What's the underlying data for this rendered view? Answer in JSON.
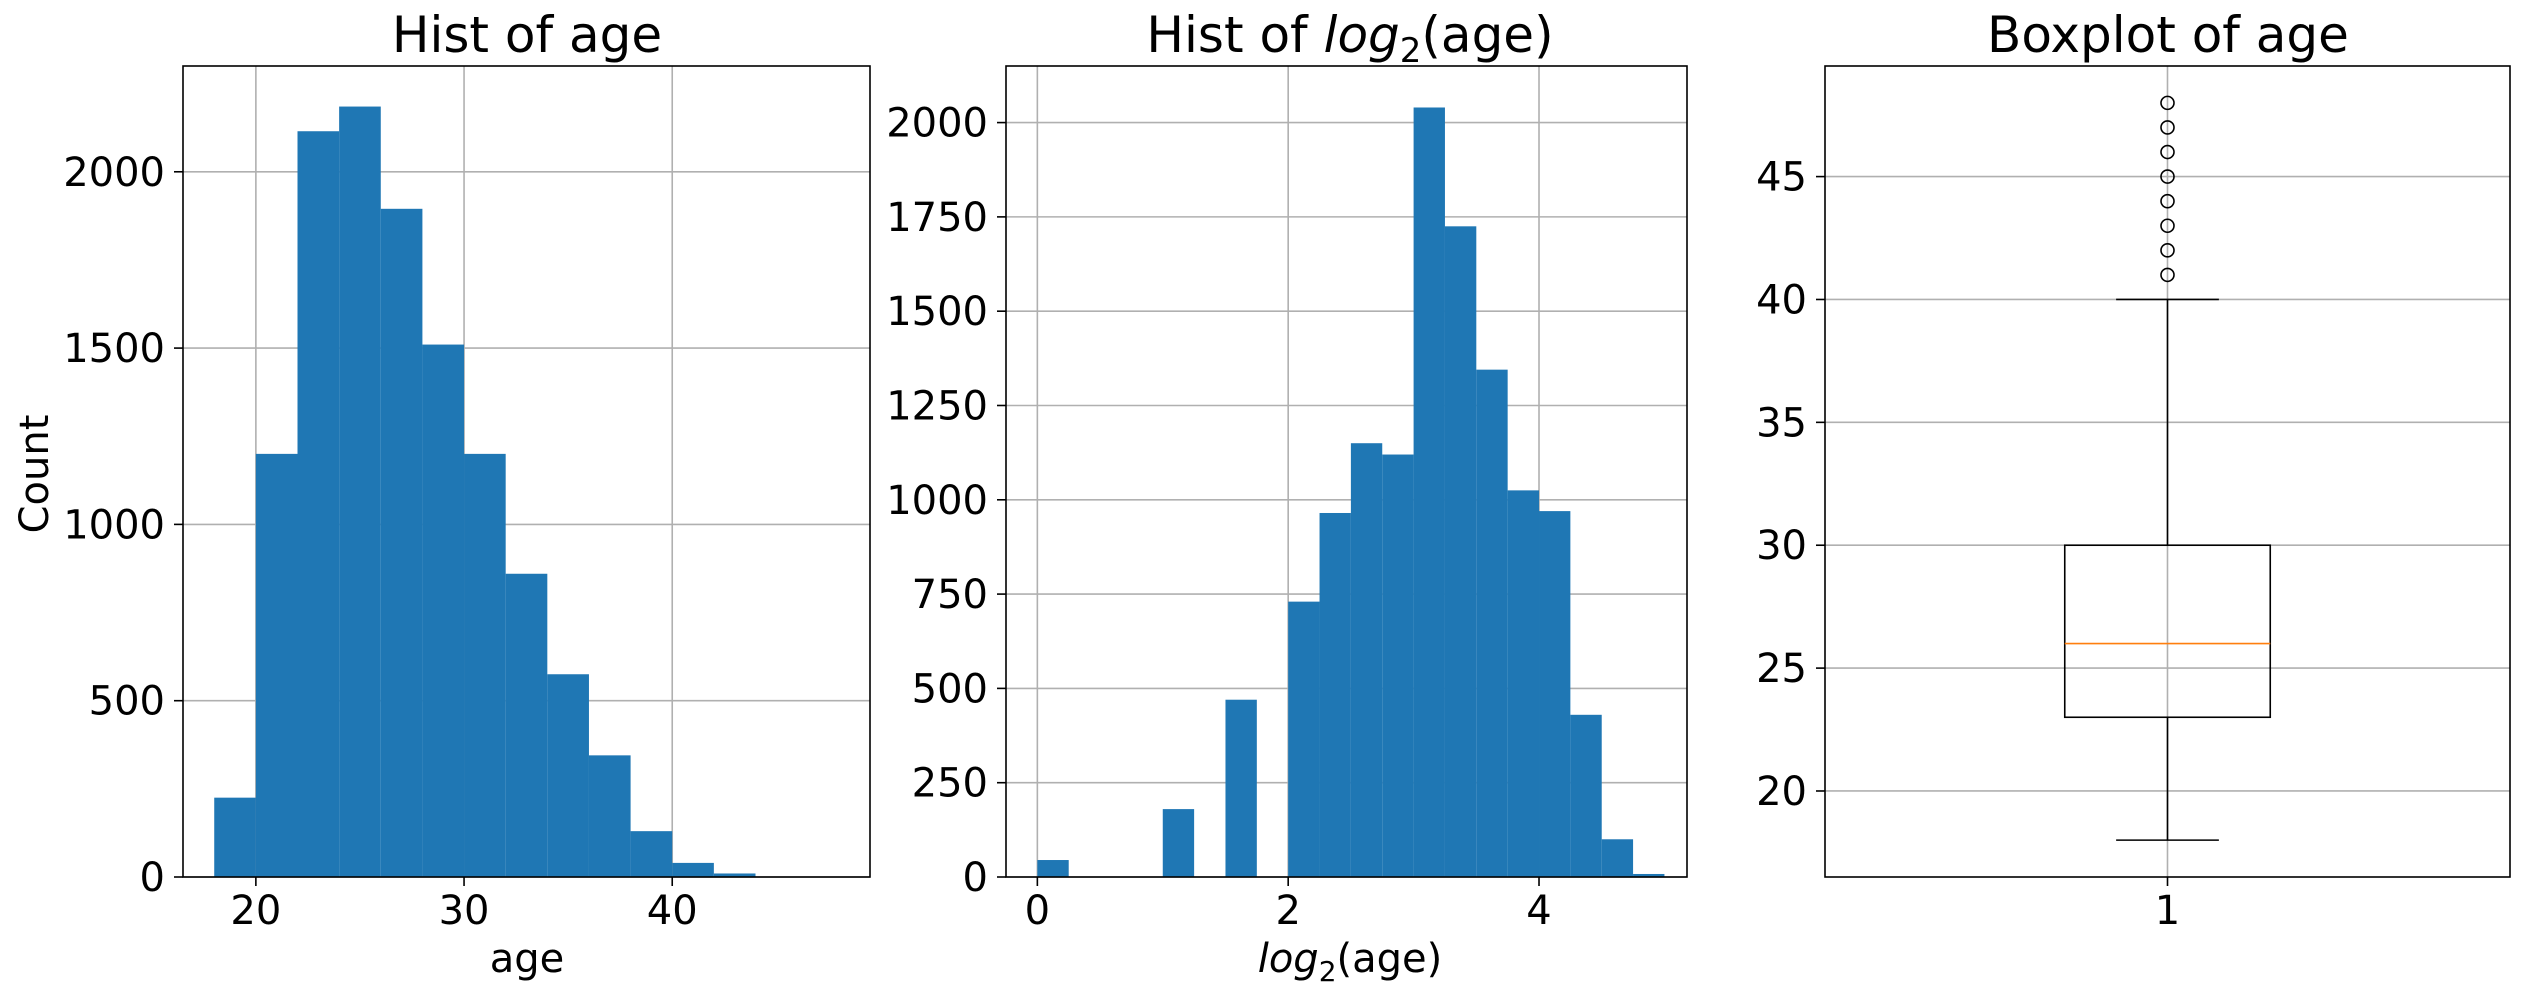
{
  "figure": {
    "bar_color": "#1f77b4",
    "grid_color": "#b0b0b0",
    "median_color": "#ff7f0e"
  },
  "chart_data": [
    {
      "type": "bar",
      "title": "Hist of age",
      "xlabel": "age",
      "ylabel": "Count",
      "grid": true,
      "xlim": [
        16.5,
        49.5
      ],
      "ylim": [
        0,
        2300
      ],
      "xticks": [
        20,
        30,
        40
      ],
      "yticks": [
        0,
        500,
        1000,
        1500,
        2000
      ],
      "bin_edges": [
        18,
        20,
        22,
        24,
        26,
        28,
        30,
        32,
        34,
        36,
        38,
        40,
        42,
        44,
        46,
        48
      ],
      "values": [
        225,
        1200,
        2115,
        2185,
        1895,
        1510,
        1200,
        860,
        575,
        345,
        130,
        40,
        10,
        0,
        0
      ]
    },
    {
      "type": "bar",
      "title_prefix": "Hist of ",
      "title_func": "log",
      "title_sub": "2",
      "title_suffix": "(age)",
      "xlabel_func": "log",
      "xlabel_sub": "2",
      "xlabel_suffix": "(age)",
      "grid": true,
      "xlim": [
        -0.25,
        5.18
      ],
      "ylim": [
        0,
        2150
      ],
      "xticks": [
        0,
        2,
        4
      ],
      "yticks": [
        0,
        250,
        500,
        750,
        1000,
        1250,
        1500,
        1750,
        2000
      ],
      "bin_edges": [
        0,
        0.25,
        0.5,
        0.75,
        1.0,
        1.25,
        1.5,
        1.75,
        2.0,
        2.25,
        2.5,
        2.75,
        3.0,
        3.25,
        3.5,
        3.75,
        4.0,
        4.25,
        4.5,
        4.75,
        5.0
      ],
      "values": [
        45,
        0,
        0,
        0,
        180,
        0,
        470,
        0,
        730,
        965,
        1150,
        1120,
        2040,
        1725,
        1345,
        1025,
        970,
        430,
        100,
        8
      ]
    },
    {
      "type": "boxplot",
      "title": "Boxplot of age",
      "grid": true,
      "xticks": [
        1
      ],
      "xlim": [
        0.5,
        1.5
      ],
      "ylim": [
        16.5,
        49.5
      ],
      "yticks": [
        20,
        25,
        30,
        35,
        40,
        45
      ],
      "q1": 23,
      "median": 26,
      "q3": 30,
      "whisker_low": 18,
      "whisker_high": 40,
      "outliers": [
        41,
        42,
        43,
        44,
        45,
        46,
        47,
        48
      ]
    }
  ]
}
